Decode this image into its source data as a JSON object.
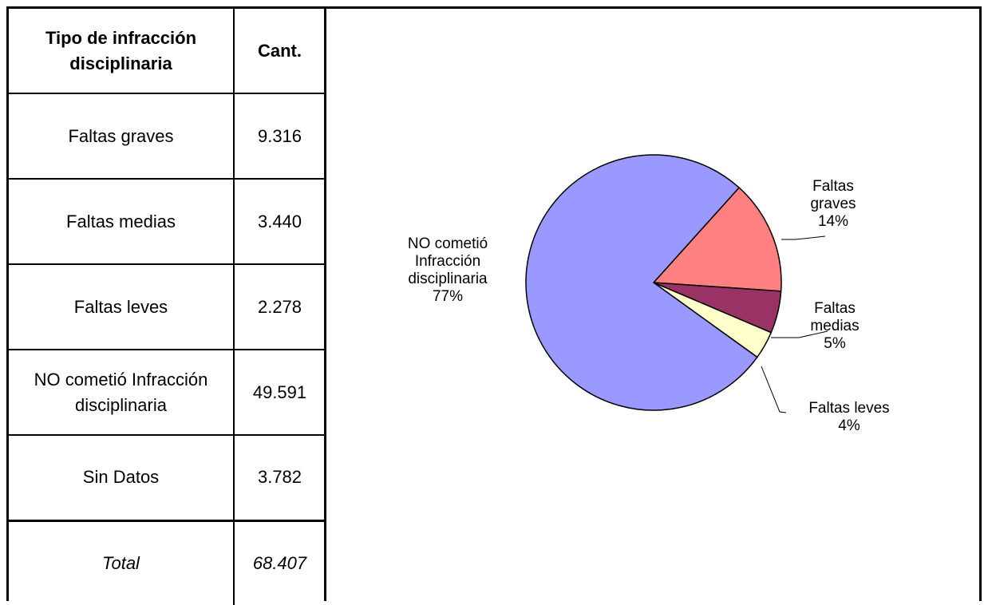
{
  "table": {
    "header": {
      "col1": "Tipo de infracción disciplinaria",
      "col2": "Cant."
    },
    "rows": [
      {
        "label": "Faltas graves",
        "value": "9.316"
      },
      {
        "label": "Faltas medias",
        "value": "3.440"
      },
      {
        "label": "Faltas leves",
        "value": "2.278"
      },
      {
        "label": "NO cometió Infracción disciplinaria",
        "value": "49.591"
      },
      {
        "label": "Sin Datos",
        "value": "3.782"
      }
    ],
    "total": {
      "label": "Total",
      "value": "68.407"
    }
  },
  "chart_data": {
    "type": "pie",
    "slices": [
      {
        "name": "Faltas graves",
        "label_lines": [
          "Faltas",
          "graves",
          "14%"
        ],
        "value": 9316,
        "percent": 14,
        "color": "#FF8080"
      },
      {
        "name": "Faltas medias",
        "label_lines": [
          "Faltas",
          "medias",
          "5%"
        ],
        "value": 3440,
        "percent": 5,
        "color": "#993366"
      },
      {
        "name": "Faltas leves",
        "label_lines": [
          "Faltas leves",
          "4%"
        ],
        "value": 2278,
        "percent": 4,
        "color": "#FFFFCC"
      },
      {
        "name": "NO cometió Infracción disciplinaria",
        "label_lines": [
          "NO cometió",
          "Infracción",
          "disciplinaria",
          "77%"
        ],
        "value": 49591,
        "percent": 77,
        "color": "#9999FF"
      }
    ]
  }
}
